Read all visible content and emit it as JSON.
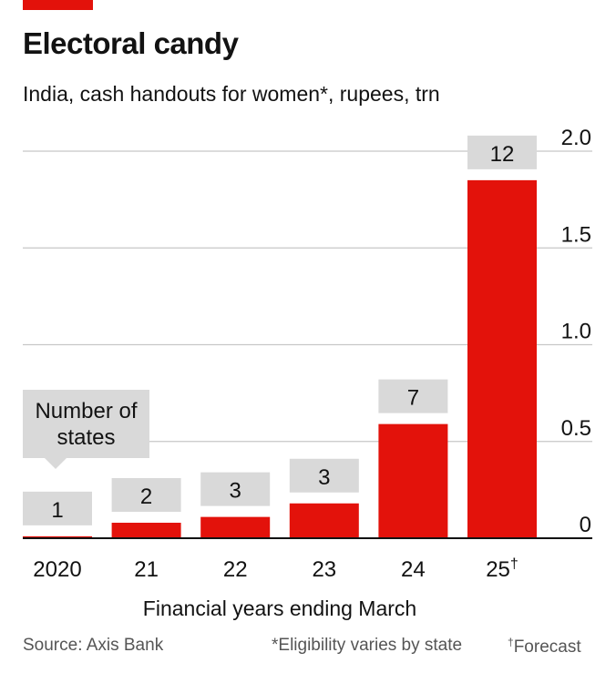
{
  "header": {
    "title": "Electoral candy",
    "subtitle": "India, cash handouts for women*, rupees, trn"
  },
  "chart_data": {
    "type": "bar",
    "categories": [
      "2020",
      "21",
      "22",
      "23",
      "24",
      "25"
    ],
    "category_marks": [
      "",
      "",
      "",
      "",
      "",
      "†"
    ],
    "values": [
      0.01,
      0.08,
      0.11,
      0.18,
      0.59,
      1.85
    ],
    "state_counts": [
      "1",
      "2",
      "3",
      "3",
      "7",
      "12"
    ],
    "state_count_label": "Number of states",
    "state_count_label_lines": [
      "Number of",
      "states"
    ],
    "ylim": [
      0,
      2.0
    ],
    "yticks": [
      0,
      0.5,
      1.0,
      1.5,
      2.0
    ],
    "ytick_labels": [
      "0",
      "0.5",
      "1.0",
      "1.5",
      "2.0"
    ],
    "y_axis_side": "right",
    "xlabel": "Financial years ending March",
    "grid": true,
    "colors": {
      "bar": "#e3120b",
      "count_box": "#d9d9d9",
      "grid": "#c7c7c7",
      "axis": "#121212"
    }
  },
  "footer": {
    "source": "Source: Axis Bank",
    "footnote": "*Eligibility varies by state",
    "forecast_mark": "†",
    "forecast_label": "Forecast"
  },
  "brand": {
    "tag_color": "#e3120b"
  }
}
